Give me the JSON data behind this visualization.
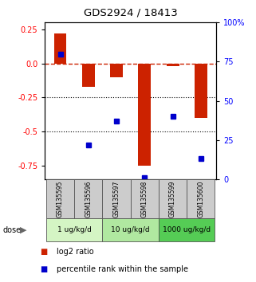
{
  "title": "GDS2924 / 18413",
  "samples": [
    "GSM135595",
    "GSM135596",
    "GSM135597",
    "GSM135598",
    "GSM135599",
    "GSM135600"
  ],
  "log2_ratio": [
    0.22,
    -0.17,
    -0.1,
    -0.75,
    -0.02,
    -0.4
  ],
  "percentile_rank": [
    80,
    22,
    37,
    1,
    40,
    13
  ],
  "dose_groups": [
    {
      "label": "1 ug/kg/d",
      "spans": [
        0,
        1
      ],
      "color": "#d4f5c4"
    },
    {
      "label": "10 ug/kg/d",
      "spans": [
        2,
        3
      ],
      "color": "#b0e8a0"
    },
    {
      "label": "1000 ug/kg/d",
      "spans": [
        4,
        5
      ],
      "color": "#55cc55"
    }
  ],
  "ylim_left": [
    -0.85,
    0.3
  ],
  "ylim_right": [
    0,
    100
  ],
  "yticks_left": [
    0.25,
    0.0,
    -0.25,
    -0.5,
    -0.75
  ],
  "yticks_right": [
    100,
    75,
    50,
    25,
    0
  ],
  "bar_color": "#cc2200",
  "dot_color": "#0000cc",
  "hline_color": "#cc2200",
  "grid_color": "#000000",
  "bar_width": 0.45,
  "legend_items": [
    "log2 ratio",
    "percentile rank within the sample"
  ],
  "sample_bg_color": "#cccccc",
  "dose_label": "dose"
}
